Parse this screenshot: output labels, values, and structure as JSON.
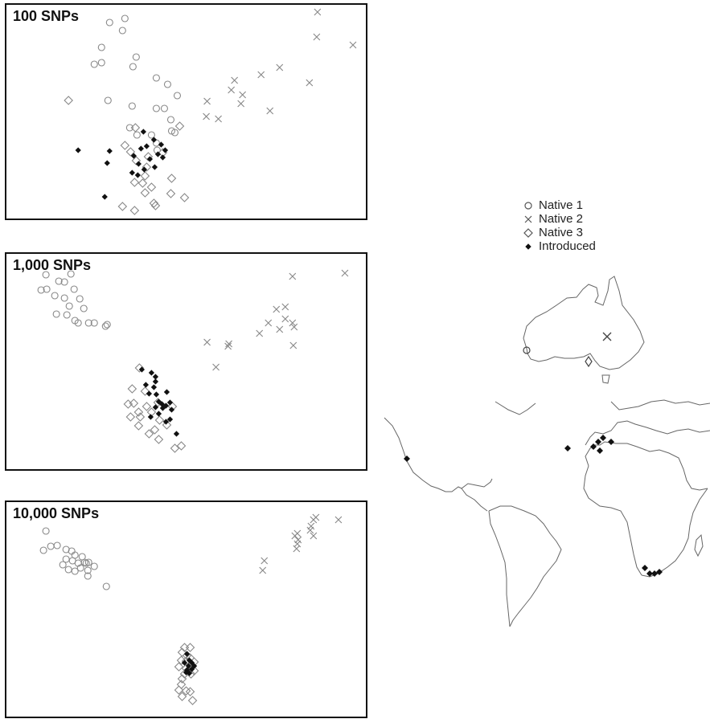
{
  "legend": [
    {
      "label": "Native 1",
      "symbol": "circle"
    },
    {
      "label": "Native 2",
      "symbol": "cross"
    },
    {
      "label": "Native 3",
      "symbol": "diamond"
    },
    {
      "label": "Introduced",
      "symbol": "filled-diamond"
    }
  ],
  "colors": {
    "native": "#888888",
    "introduced": "#111111",
    "frame": "#111111",
    "land": "#666666"
  },
  "map": {
    "australia_sites": [
      {
        "group": "Native 1",
        "symbol": "circle",
        "region": "south-west Australia"
      },
      {
        "group": "Native 2",
        "symbol": "cross",
        "region": "east Australia"
      },
      {
        "group": "Native 3",
        "symbol": "diamond",
        "region": "south-east Australia"
      }
    ],
    "introduced_sites": [
      "California",
      "Canary Islands",
      "Portugal",
      "Spain",
      "Morocco",
      "South Africa"
    ]
  },
  "chart_data": [
    {
      "type": "scatter",
      "title": "100 SNPs",
      "xlim": [
        0,
        450
      ],
      "ylim": [
        0,
        270
      ],
      "series": [
        {
          "name": "Native 1",
          "symbol": "circle",
          "points": [
            [
              130,
              24
            ],
            [
              149,
              19
            ],
            [
              146,
              34
            ],
            [
              120,
              55
            ],
            [
              120,
              74
            ],
            [
              111,
              76
            ],
            [
              163,
              67
            ],
            [
              159,
              79
            ],
            [
              188,
              93
            ],
            [
              202,
              101
            ],
            [
              214,
              115
            ],
            [
              128,
              121
            ],
            [
              158,
              128
            ],
            [
              188,
              131
            ],
            [
              198,
              131
            ],
            [
              206,
              145
            ],
            [
              207,
              159
            ],
            [
              211,
              161
            ],
            [
              155,
              155
            ],
            [
              164,
              164
            ],
            [
              182,
              164
            ],
            [
              188,
              174
            ],
            [
              189,
              183
            ]
          ]
        },
        {
          "name": "Native 2",
          "symbol": "cross",
          "points": [
            [
              388,
              11
            ],
            [
              387,
              42
            ],
            [
              432,
              52
            ],
            [
              341,
              80
            ],
            [
              318,
              89
            ],
            [
              285,
              96
            ],
            [
              281,
              108
            ],
            [
              295,
              114
            ],
            [
              251,
              122
            ],
            [
              293,
              125
            ],
            [
              378,
              99
            ],
            [
              250,
              141
            ],
            [
              265,
              144
            ],
            [
              329,
              134
            ]
          ]
        },
        {
          "name": "Native 3",
          "symbol": "diamond",
          "points": [
            [
              79,
              121
            ],
            [
              162,
              155
            ],
            [
              217,
              153
            ],
            [
              149,
              177
            ],
            [
              156,
              185
            ],
            [
              178,
              191
            ],
            [
              196,
              186
            ],
            [
              163,
              196
            ],
            [
              176,
              204
            ],
            [
              174,
              215
            ],
            [
              161,
              223
            ],
            [
              207,
              218
            ],
            [
              171,
              224
            ],
            [
              182,
              229
            ],
            [
              174,
              236
            ],
            [
              206,
              237
            ],
            [
              223,
              242
            ],
            [
              185,
              249
            ],
            [
              146,
              253
            ],
            [
              161,
              258
            ],
            [
              187,
              252
            ]
          ]
        },
        {
          "name": "Introduced",
          "symbol": "filled-diamond",
          "points": [
            [
              91,
              183
            ],
            [
              172,
              160
            ],
            [
              185,
              170
            ],
            [
              194,
              176
            ],
            [
              176,
              178
            ],
            [
              169,
              181
            ],
            [
              199,
              183
            ],
            [
              130,
              184
            ],
            [
              190,
              188
            ],
            [
              160,
              190
            ],
            [
              180,
              194
            ],
            [
              196,
              192
            ],
            [
              127,
              199
            ],
            [
              166,
              200
            ],
            [
              186,
              204
            ],
            [
              158,
              211
            ],
            [
              173,
              207
            ],
            [
              165,
              214
            ],
            [
              124,
              241
            ]
          ]
        }
      ]
    },
    {
      "type": "scatter",
      "title": "1,000 SNPs",
      "xlim": [
        0,
        450
      ],
      "ylim": [
        0,
        272
      ],
      "series": [
        {
          "name": "Native 1",
          "symbol": "circle",
          "points": [
            [
              51,
              28
            ],
            [
              82,
              27
            ],
            [
              67,
              36
            ],
            [
              74,
              37
            ],
            [
              86,
              46
            ],
            [
              45,
              47
            ],
            [
              52,
              46
            ],
            [
              62,
              54
            ],
            [
              74,
              57
            ],
            [
              93,
              58
            ],
            [
              80,
              67
            ],
            [
              98,
              70
            ],
            [
              64,
              77
            ],
            [
              77,
              78
            ],
            [
              87,
              85
            ],
            [
              104,
              88
            ],
            [
              111,
              88
            ],
            [
              91,
              88
            ],
            [
              127,
              90
            ],
            [
              125,
              92
            ]
          ]
        },
        {
          "name": "Native 2",
          "symbol": "cross",
          "points": [
            [
              357,
              30
            ],
            [
              422,
              26
            ],
            [
              348,
              68
            ],
            [
              337,
              71
            ],
            [
              348,
              83
            ],
            [
              357,
              88
            ],
            [
              327,
              88
            ],
            [
              359,
              93
            ],
            [
              341,
              96
            ],
            [
              316,
              101
            ],
            [
              251,
              112
            ],
            [
              277,
              117
            ],
            [
              278,
              114
            ],
            [
              358,
              116
            ],
            [
              262,
              143
            ]
          ]
        },
        {
          "name": "Native 3",
          "symbol": "diamond",
          "points": [
            [
              167,
              144
            ],
            [
              158,
              170
            ],
            [
              174,
              173
            ],
            [
              153,
              189
            ],
            [
              160,
              188
            ],
            [
              190,
              187
            ],
            [
              176,
              192
            ],
            [
              208,
              192
            ],
            [
              166,
              199
            ],
            [
              182,
              199
            ],
            [
              156,
              205
            ],
            [
              168,
              205
            ],
            [
              192,
              209
            ],
            [
              201,
              215
            ],
            [
              166,
              216
            ],
            [
              186,
              221
            ],
            [
              179,
              226
            ],
            [
              191,
              233
            ],
            [
              219,
              241
            ],
            [
              211,
              244
            ]
          ]
        },
        {
          "name": "Introduced",
          "symbol": "filled-diamond",
          "points": [
            [
              170,
              146
            ],
            [
              182,
              150
            ],
            [
              187,
              155
            ],
            [
              187,
              161
            ],
            [
              175,
              165
            ],
            [
              185,
              168
            ],
            [
              201,
              174
            ],
            [
              179,
              176
            ],
            [
              188,
              177
            ],
            [
              191,
              186
            ],
            [
              205,
              187
            ],
            [
              195,
              189
            ],
            [
              200,
              191
            ],
            [
              187,
              193
            ],
            [
              196,
              194
            ],
            [
              207,
              196
            ],
            [
              191,
              201
            ],
            [
              181,
              205
            ],
            [
              205,
              208
            ],
            [
              200,
              211
            ],
            [
              213,
              226
            ]
          ]
        }
      ]
    },
    {
      "type": "scatter",
      "title": "10,000 SNPs",
      "xlim": [
        0,
        450
      ],
      "ylim": [
        0,
        271
      ],
      "series": [
        {
          "name": "Native 1",
          "symbol": "circle",
          "points": [
            [
              51,
              38
            ],
            [
              57,
              57
            ],
            [
              65,
              56
            ],
            [
              48,
              62
            ],
            [
              76,
              61
            ],
            [
              83,
              63
            ],
            [
              87,
              68
            ],
            [
              96,
              70
            ],
            [
              99,
              77
            ],
            [
              76,
              73
            ],
            [
              84,
              75
            ],
            [
              91,
              78
            ],
            [
              101,
              78
            ],
            [
              104,
              77
            ],
            [
              111,
              82
            ],
            [
              72,
              80
            ],
            [
              79,
              86
            ],
            [
              87,
              88
            ],
            [
              94,
              84
            ],
            [
              103,
              87
            ],
            [
              103,
              94
            ],
            [
              126,
              107
            ]
          ]
        },
        {
          "name": "Native 2",
          "symbol": "cross",
          "points": [
            [
              386,
              21
            ],
            [
              383,
              24
            ],
            [
              414,
              24
            ],
            [
              380,
              32
            ],
            [
              379,
              37
            ],
            [
              360,
              44
            ],
            [
              363,
              41
            ],
            [
              383,
              44
            ],
            [
              364,
              49
            ],
            [
              363,
              54
            ],
            [
              362,
              60
            ],
            [
              322,
              75
            ],
            [
              320,
              87
            ]
          ]
        },
        {
          "name": "Native 3",
          "symbol": "diamond",
          "points": [
            [
              223,
              183
            ],
            [
              230,
              183
            ],
            [
              220,
              189
            ],
            [
              226,
              193
            ],
            [
              230,
              196
            ],
            [
              219,
              199
            ],
            [
              225,
              200
            ],
            [
              235,
              201
            ],
            [
              216,
              207
            ],
            [
              225,
              209
            ],
            [
              235,
              212
            ],
            [
              223,
              216
            ],
            [
              231,
              216
            ],
            [
              220,
              222
            ],
            [
              219,
              229
            ],
            [
              216,
              236
            ],
            [
              225,
              237
            ],
            [
              230,
              238
            ],
            [
              220,
              244
            ],
            [
              233,
              249
            ]
          ]
        },
        {
          "name": "Introduced",
          "symbol": "filled-diamond",
          "points": [
            [
              226,
              191
            ],
            [
              229,
              199
            ],
            [
              223,
              202
            ],
            [
              232,
              202
            ],
            [
              228,
              206
            ],
            [
              235,
              206
            ],
            [
              226,
              211
            ],
            [
              232,
              210
            ],
            [
              229,
              215
            ],
            [
              225,
              214
            ]
          ]
        }
      ]
    }
  ]
}
